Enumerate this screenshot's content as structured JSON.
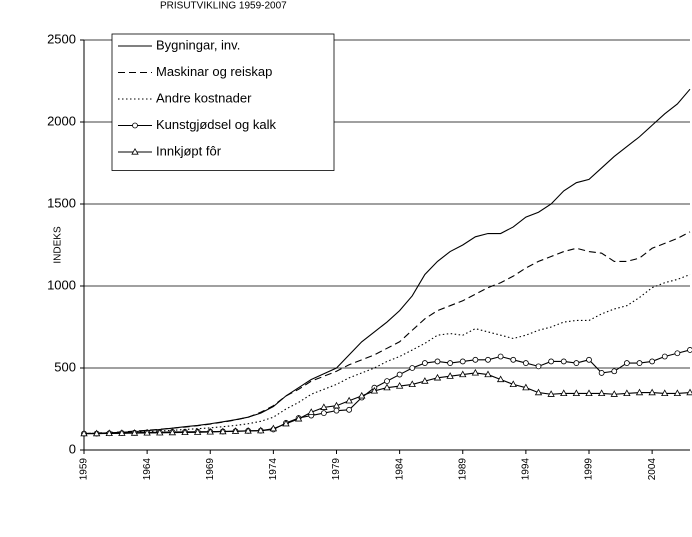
{
  "chart_data": {
    "type": "line",
    "title": "PRISUTVIKLING 1959-2007",
    "y_label": "INDEKS",
    "x": [
      1959,
      1960,
      1961,
      1962,
      1963,
      1964,
      1965,
      1966,
      1967,
      1968,
      1969,
      1970,
      1971,
      1972,
      1973,
      1974,
      1975,
      1976,
      1977,
      1978,
      1979,
      1980,
      1981,
      1982,
      1983,
      1984,
      1985,
      1986,
      1987,
      1988,
      1989,
      1990,
      1991,
      1992,
      1993,
      1994,
      1995,
      1996,
      1997,
      1998,
      1999,
      2000,
      2001,
      2002,
      2003,
      2004,
      2005,
      2006,
      2007
    ],
    "xlim": [
      1959,
      2007
    ],
    "xticks": [
      1959,
      1964,
      1969,
      1974,
      1979,
      1984,
      1989,
      1994,
      1999,
      2004
    ],
    "ylim": [
      0,
      2500
    ],
    "yticks": [
      0,
      500,
      1000,
      1500,
      2000,
      2500
    ],
    "grid": true,
    "legend": "upper left",
    "series": [
      {
        "name": "Bygningar, inv.",
        "color": "#000000",
        "style": "solid",
        "values": [
          100,
          102,
          105,
          108,
          112,
          118,
          125,
          133,
          142,
          150,
          160,
          172,
          185,
          200,
          225,
          265,
          330,
          380,
          430,
          465,
          500,
          580,
          660,
          720,
          780,
          850,
          940,
          1070,
          1150,
          1210,
          1250,
          1300,
          1320,
          1320,
          1360,
          1420,
          1450,
          1500,
          1580,
          1630,
          1650,
          1720,
          1790,
          1850,
          1910,
          1980,
          2050,
          2110,
          2200
        ]
      },
      {
        "name": "Maskinar og reiskap",
        "color": "#000000",
        "style": "dashed",
        "values": [
          100,
          103,
          107,
          110,
          115,
          120,
          126,
          133,
          140,
          148,
          158,
          170,
          183,
          200,
          230,
          270,
          330,
          370,
          420,
          450,
          480,
          520,
          550,
          580,
          620,
          660,
          730,
          800,
          850,
          880,
          910,
          950,
          990,
          1020,
          1060,
          1110,
          1150,
          1180,
          1210,
          1230,
          1210,
          1200,
          1150,
          1150,
          1170,
          1230,
          1260,
          1290,
          1330
        ]
      },
      {
        "name": "Andre kostnader",
        "color": "#000000",
        "style": "dotted",
        "values": [
          100,
          102,
          104,
          106,
          108,
          112,
          116,
          120,
          125,
          130,
          135,
          142,
          150,
          160,
          175,
          200,
          250,
          290,
          340,
          370,
          400,
          440,
          470,
          500,
          540,
          570,
          610,
          650,
          700,
          710,
          700,
          740,
          720,
          700,
          680,
          700,
          730,
          750,
          780,
          790,
          790,
          830,
          860,
          880,
          930,
          990,
          1020,
          1040,
          1070
        ]
      },
      {
        "name": "Kunstgjødsel og kalk",
        "color": "#000000",
        "style": "solid",
        "marker": "circle",
        "values": [
          100,
          100,
          102,
          103,
          105,
          107,
          108,
          110,
          110,
          112,
          112,
          113,
          115,
          117,
          118,
          125,
          165,
          195,
          210,
          225,
          240,
          245,
          320,
          380,
          420,
          460,
          500,
          530,
          540,
          530,
          540,
          550,
          550,
          570,
          550,
          530,
          510,
          540,
          540,
          530,
          550,
          470,
          480,
          530,
          530,
          540,
          570,
          590,
          610
        ]
      },
      {
        "name": "Innkjøpt fôr",
        "color": "#000000",
        "style": "solid",
        "marker": "triangle",
        "values": [
          100,
          100,
          101,
          102,
          103,
          104,
          105,
          106,
          107,
          108,
          110,
          112,
          114,
          116,
          118,
          130,
          160,
          190,
          230,
          260,
          270,
          300,
          330,
          360,
          380,
          390,
          400,
          420,
          440,
          450,
          460,
          470,
          460,
          430,
          400,
          380,
          350,
          340,
          345,
          345,
          345,
          345,
          340,
          345,
          350,
          350,
          345,
          345,
          350
        ]
      }
    ]
  }
}
